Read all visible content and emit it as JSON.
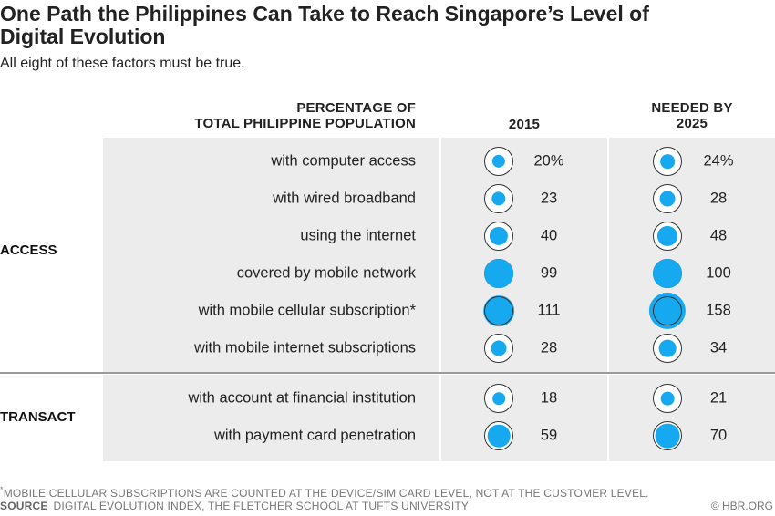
{
  "title": "One Path the Philippines Can Take to Reach Singapore’s Level of Digital Evolution",
  "subtitle": "All eight of these factors must be true.",
  "headers": {
    "label_line1": "PERCENTAGE OF",
    "label_line2": "TOTAL PHILIPPINE POPULATION",
    "col_2015": "2015",
    "col_2025_line1": "NEEDED BY",
    "col_2025_line2": "2025"
  },
  "groups": {
    "access": "ACCESS",
    "transact": "TRANSACT"
  },
  "chart_data": {
    "type": "table",
    "value_unit": "%",
    "columns": [
      "2015",
      "NEEDED BY 2025"
    ],
    "rows": [
      {
        "group": "ACCESS",
        "label": "with computer access",
        "v2015": 20,
        "v2025": 24,
        "d2015": "20%",
        "d2025": "24%"
      },
      {
        "group": "ACCESS",
        "label": "with wired broadband",
        "v2015": 23,
        "v2025": 28,
        "d2015": "23",
        "d2025": "28"
      },
      {
        "group": "ACCESS",
        "label": "using the internet",
        "v2015": 40,
        "v2025": 48,
        "d2015": "40",
        "d2025": "48"
      },
      {
        "group": "ACCESS",
        "label": "covered by mobile network",
        "v2015": 99,
        "v2025": 100,
        "d2015": "99",
        "d2025": "100"
      },
      {
        "group": "ACCESS",
        "label": "with mobile cellular subscription*",
        "v2015": 111,
        "v2025": 158,
        "d2015": "111",
        "d2025": "158"
      },
      {
        "group": "ACCESS",
        "label": "with mobile internet subscriptions",
        "v2015": 28,
        "v2025": 34,
        "d2015": "28",
        "d2025": "34"
      },
      {
        "group": "TRANSACT",
        "label": "with account at financial institution",
        "v2015": 18,
        "v2025": 21,
        "d2015": "18",
        "d2025": "21"
      },
      {
        "group": "TRANSACT",
        "label": "with payment card penetration",
        "v2015": 59,
        "v2025": 70,
        "d2015": "59",
        "d2025": "70"
      }
    ],
    "reference_circle_value": 100,
    "fill_color": "#17a9ef",
    "outline_color": "#333333"
  },
  "footnote": {
    "marker": "*",
    "text": "MOBILE CELLULAR SUBSCRIPTIONS ARE COUNTED AT THE DEVICE/SIM CARD LEVEL, NOT AT THE CUSTOMER LEVEL."
  },
  "source": {
    "label": "SOURCE",
    "text": "DIGITAL EVOLUTION INDEX, THE FLETCHER SCHOOL AT TUFTS UNIVERSITY"
  },
  "credit": "© HBR.ORG"
}
